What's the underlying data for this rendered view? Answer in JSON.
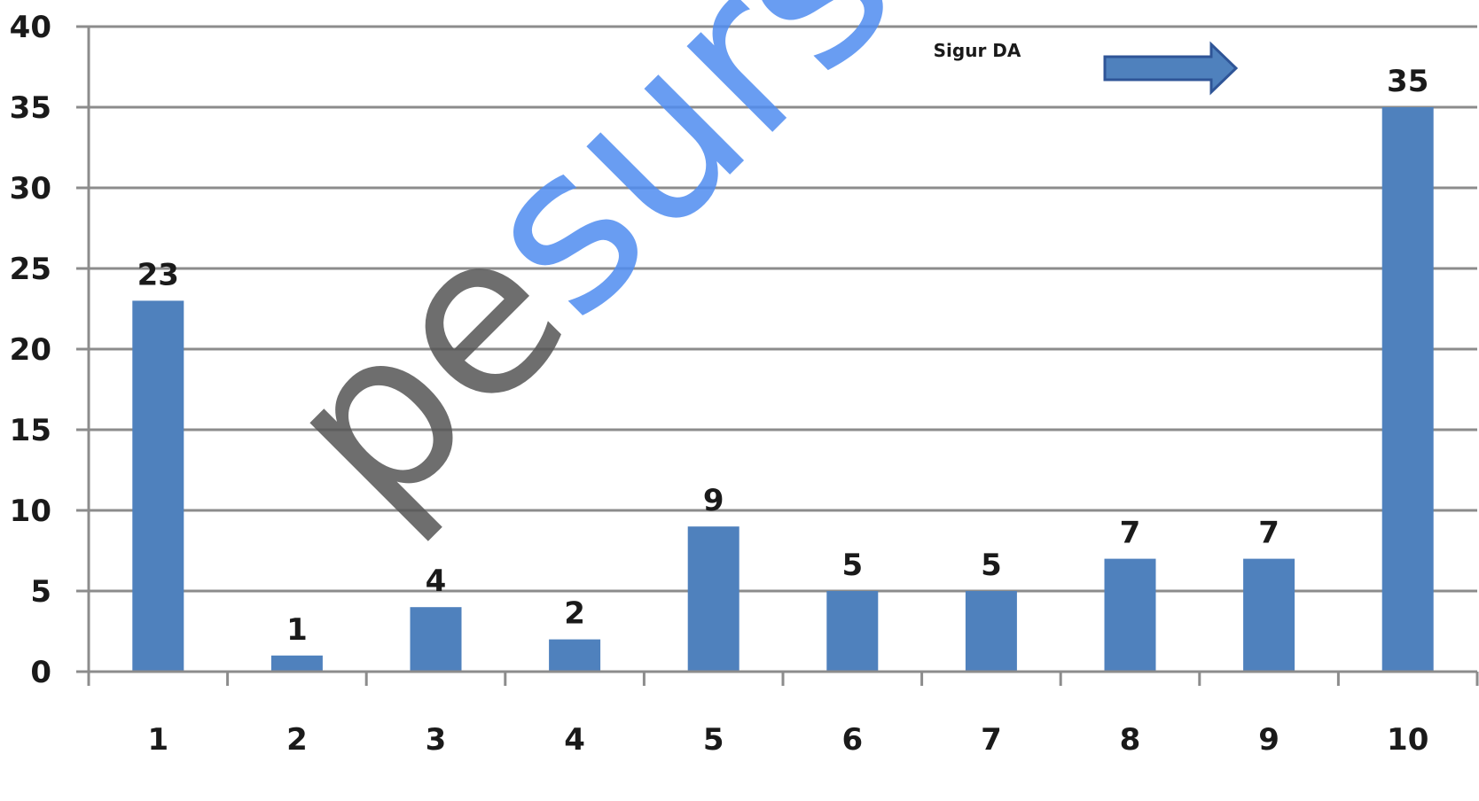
{
  "chart_data": {
    "type": "bar",
    "categories": [
      "1",
      "2",
      "3",
      "4",
      "5",
      "6",
      "7",
      "8",
      "9",
      "10"
    ],
    "values": [
      23,
      1,
      4,
      2,
      9,
      5,
      5,
      7,
      7,
      35
    ],
    "ylim": [
      0,
      40
    ],
    "yticks": [
      "0",
      "5",
      "10",
      "15",
      "20",
      "25",
      "30",
      "35",
      "40"
    ],
    "grid": "horizontal",
    "bar_color": "#4f81bd",
    "annotation": "Sigur DA",
    "annotation_arrow": "right-arrow-icon",
    "watermark": {
      "part1": "pe",
      "part2": "surse",
      "color1": "#555555",
      "color2": "#4f8cf0"
    }
  }
}
